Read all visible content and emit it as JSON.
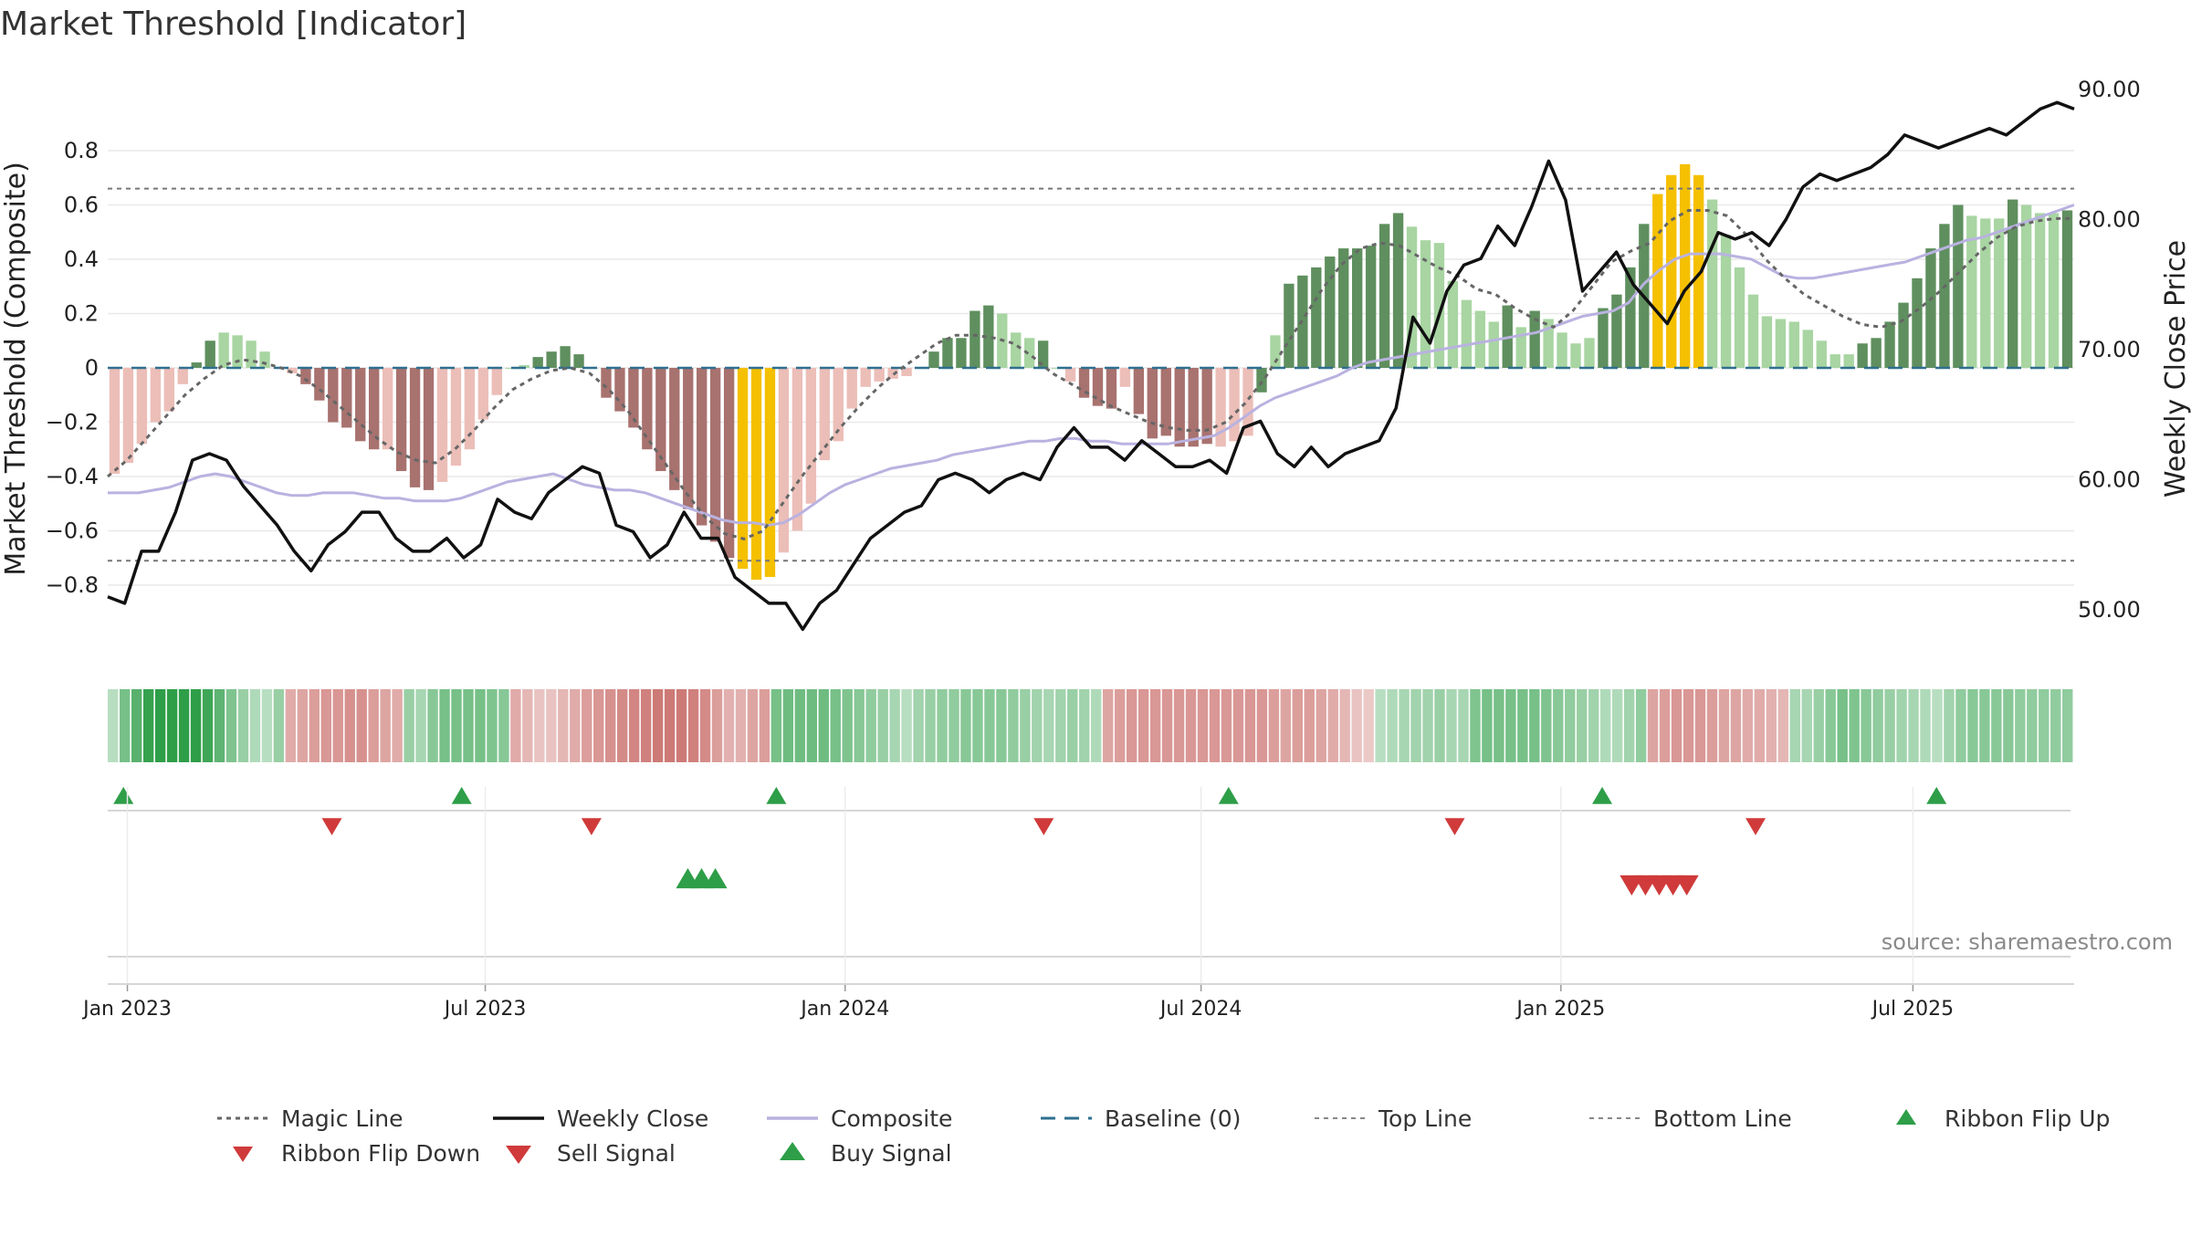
{
  "chart_data": {
    "type": "bar",
    "title": "Market Threshold [Indicator]",
    "ylabel": "Market Threshold (Composite)",
    "y2label": "Weekly Close Price",
    "ylim": [
      -0.85,
      0.85
    ],
    "y2lim": [
      45.0,
      92.0
    ],
    "yticks": [
      "0.8",
      "0.6",
      "0.4",
      "0.2",
      "0",
      "−0.2",
      "−0.4",
      "−0.6",
      "−0.8"
    ],
    "y2ticks": [
      "90.00",
      "80.00",
      "70.00",
      "60.00",
      "50.00"
    ],
    "xticks": [
      "Jan 2023",
      "Jul 2023",
      "Jan 2024",
      "Jul 2024",
      "Jan 2025",
      "Jul 2025"
    ],
    "top_line": 0.66,
    "bottom_line": -0.71,
    "source": "source: sharemaestro.com",
    "colors": {
      "strong_green": "#5f8f5f",
      "light_green": "#a8d5a2",
      "strong_red": "#a8726f",
      "light_red": "#ecbeb8",
      "extreme": "#f5c000",
      "magic_line": "#666666",
      "weekly_close": "#111111",
      "composite": "#b9b2e0",
      "baseline": "#2f6f8f",
      "buy": "#2e9e48",
      "sell": "#d03a3a"
    },
    "bar_values": [
      -0.39,
      -0.35,
      -0.28,
      -0.2,
      -0.16,
      -0.06,
      0.02,
      0.1,
      0.13,
      0.12,
      0.1,
      0.06,
      0.0,
      -0.02,
      -0.06,
      -0.12,
      -0.2,
      -0.22,
      -0.27,
      -0.3,
      -0.3,
      -0.38,
      -0.44,
      -0.45,
      -0.42,
      -0.36,
      -0.3,
      -0.19,
      -0.1,
      0.0,
      0.01,
      0.04,
      0.06,
      0.08,
      0.05,
      0.0,
      -0.11,
      -0.16,
      -0.22,
      -0.3,
      -0.38,
      -0.45,
      -0.52,
      -0.58,
      -0.64,
      -0.7,
      -0.74,
      -0.78,
      -0.77,
      -0.68,
      -0.6,
      -0.5,
      -0.34,
      -0.27,
      -0.15,
      -0.07,
      -0.05,
      -0.04,
      -0.03,
      0.0,
      0.06,
      0.11,
      0.11,
      0.21,
      0.23,
      0.2,
      0.13,
      0.11,
      0.1,
      0.0,
      -0.05,
      -0.11,
      -0.14,
      -0.15,
      -0.07,
      -0.17,
      -0.26,
      -0.25,
      -0.29,
      -0.29,
      -0.28,
      -0.29,
      -0.27,
      -0.25,
      -0.09,
      0.12,
      0.31,
      0.34,
      0.37,
      0.41,
      0.44,
      0.44,
      0.45,
      0.53,
      0.57,
      0.52,
      0.47,
      0.46,
      0.32,
      0.25,
      0.21,
      0.17,
      0.23,
      0.15,
      0.21,
      0.18,
      0.13,
      0.09,
      0.11,
      0.22,
      0.27,
      0.37,
      0.53,
      0.64,
      0.71,
      0.75,
      0.71,
      0.62,
      0.49,
      0.37,
      0.27,
      0.19,
      0.18,
      0.17,
      0.14,
      0.1,
      0.05,
      0.05,
      0.09,
      0.11,
      0.17,
      0.24,
      0.33,
      0.44,
      0.53,
      0.6,
      0.56,
      0.55,
      0.55,
      0.62,
      0.6,
      0.57,
      0.57,
      0.58
    ],
    "bar_colors": [
      "lr",
      "lr",
      "lr",
      "lr",
      "lr",
      "lr",
      "sg",
      "sg",
      "lg",
      "lg",
      "lg",
      "lg",
      "lr",
      "lr",
      "sr",
      "sr",
      "sr",
      "sr",
      "sr",
      "sr",
      "lr",
      "sr",
      "sr",
      "sr",
      "lr",
      "lr",
      "lr",
      "lr",
      "lr",
      "lg",
      "lg",
      "sg",
      "sg",
      "sg",
      "sg",
      "lg",
      "sr",
      "sr",
      "sr",
      "sr",
      "sr",
      "sr",
      "sr",
      "sr",
      "sr",
      "sr",
      "ex",
      "ex",
      "ex",
      "lr",
      "lr",
      "lr",
      "lr",
      "lr",
      "lr",
      "lr",
      "lr",
      "lr",
      "lr",
      "lg",
      "sg",
      "sg",
      "sg",
      "sg",
      "sg",
      "lg",
      "lg",
      "lg",
      "sg",
      "lg",
      "lr",
      "sr",
      "sr",
      "sr",
      "lr",
      "sr",
      "sr",
      "sr",
      "sr",
      "sr",
      "sr",
      "lr",
      "lr",
      "lr",
      "sg",
      "lg",
      "sg",
      "sg",
      "sg",
      "sg",
      "sg",
      "sg",
      "sg",
      "sg",
      "sg",
      "lg",
      "lg",
      "lg",
      "lg",
      "lg",
      "lg",
      "lg",
      "sg",
      "lg",
      "sg",
      "lg",
      "lg",
      "lg",
      "lg",
      "sg",
      "sg",
      "sg",
      "sg",
      "ex",
      "ex",
      "ex",
      "ex",
      "lg",
      "lg",
      "lg",
      "lg",
      "lg",
      "lg",
      "lg",
      "lg",
      "lg",
      "lg",
      "lg",
      "sg",
      "sg",
      "sg",
      "sg",
      "sg",
      "sg",
      "sg",
      "sg",
      "lg",
      "lg",
      "lg",
      "sg",
      "lg",
      "lg",
      "lg",
      "sg"
    ],
    "composite": [
      -0.46,
      -0.46,
      -0.46,
      -0.45,
      -0.44,
      -0.42,
      -0.4,
      -0.39,
      -0.4,
      -0.42,
      -0.44,
      -0.46,
      -0.47,
      -0.47,
      -0.46,
      -0.46,
      -0.46,
      -0.47,
      -0.48,
      -0.48,
      -0.49,
      -0.49,
      -0.49,
      -0.48,
      -0.46,
      -0.44,
      -0.42,
      -0.41,
      -0.4,
      -0.39,
      -0.41,
      -0.43,
      -0.44,
      -0.45,
      -0.45,
      -0.46,
      -0.48,
      -0.5,
      -0.52,
      -0.54,
      -0.56,
      -0.57,
      -0.57,
      -0.58,
      -0.57,
      -0.54,
      -0.5,
      -0.46,
      -0.43,
      -0.41,
      -0.39,
      -0.37,
      -0.36,
      -0.35,
      -0.34,
      -0.32,
      -0.31,
      -0.3,
      -0.29,
      -0.28,
      -0.27,
      -0.27,
      -0.26,
      -0.26,
      -0.27,
      -0.27,
      -0.28,
      -0.28,
      -0.28,
      -0.28,
      -0.27,
      -0.26,
      -0.25,
      -0.22,
      -0.18,
      -0.14,
      -0.11,
      -0.09,
      -0.07,
      -0.05,
      -0.03,
      0.0,
      0.02,
      0.03,
      0.04,
      0.05,
      0.06,
      0.07,
      0.08,
      0.09,
      0.1,
      0.11,
      0.12,
      0.13,
      0.15,
      0.17,
      0.19,
      0.2,
      0.21,
      0.24,
      0.31,
      0.36,
      0.4,
      0.42,
      0.42,
      0.42,
      0.41,
      0.4,
      0.37,
      0.34,
      0.33,
      0.33,
      0.34,
      0.35,
      0.36,
      0.37,
      0.38,
      0.39,
      0.41,
      0.43,
      0.45,
      0.47,
      0.48,
      0.5,
      0.52,
      0.54,
      0.56,
      0.58,
      0.6
    ],
    "magic": [
      -0.4,
      -0.34,
      -0.26,
      -0.18,
      -0.1,
      -0.04,
      0.01,
      0.03,
      0.02,
      0.0,
      -0.03,
      -0.08,
      -0.14,
      -0.2,
      -0.26,
      -0.31,
      -0.34,
      -0.35,
      -0.3,
      -0.23,
      -0.15,
      -0.08,
      -0.04,
      -0.01,
      0.0,
      -0.02,
      -0.08,
      -0.16,
      -0.26,
      -0.36,
      -0.46,
      -0.55,
      -0.61,
      -0.63,
      -0.6,
      -0.5,
      -0.4,
      -0.31,
      -0.22,
      -0.14,
      -0.07,
      -0.01,
      0.04,
      0.09,
      0.12,
      0.12,
      0.11,
      0.09,
      0.04,
      -0.02,
      -0.06,
      -0.1,
      -0.14,
      -0.17,
      -0.2,
      -0.22,
      -0.23,
      -0.23,
      -0.2,
      -0.13,
      -0.04,
      0.07,
      0.18,
      0.29,
      0.38,
      0.44,
      0.46,
      0.45,
      0.41,
      0.37,
      0.34,
      0.29,
      0.27,
      0.22,
      0.18,
      0.15,
      0.21,
      0.3,
      0.39,
      0.43,
      0.46,
      0.54,
      0.58,
      0.58,
      0.56,
      0.49,
      0.4,
      0.33,
      0.27,
      0.23,
      0.19,
      0.16,
      0.15,
      0.17,
      0.22,
      0.28,
      0.35,
      0.42,
      0.48,
      0.52,
      0.54,
      0.55,
      0.55
    ],
    "weekly_close": [
      51.0,
      50.5,
      54.5,
      54.5,
      57.5,
      61.5,
      62.0,
      61.5,
      59.5,
      58.0,
      56.5,
      54.5,
      53.0,
      55.0,
      56.0,
      57.5,
      57.5,
      55.5,
      54.5,
      54.5,
      55.5,
      54.0,
      55.0,
      58.5,
      57.5,
      57.0,
      59.0,
      60.0,
      61.0,
      60.5,
      56.5,
      56.0,
      54.0,
      55.0,
      57.5,
      55.5,
      55.5,
      52.5,
      51.5,
      50.5,
      50.5,
      48.5,
      50.5,
      51.5,
      53.5,
      55.5,
      56.5,
      57.5,
      58.0,
      60.0,
      60.5,
      60.0,
      59.0,
      60.0,
      60.5,
      60.0,
      62.5,
      64.0,
      62.5,
      62.5,
      61.5,
      63.0,
      62.0,
      61.0,
      61.0,
      61.5,
      60.5,
      64.0,
      64.5,
      62.0,
      61.0,
      62.5,
      61.0,
      62.0,
      62.5,
      63.0,
      65.5,
      72.5,
      70.5,
      74.5,
      76.5,
      77.0,
      79.5,
      78.0,
      81.0,
      84.5,
      81.5,
      74.5,
      76.0,
      77.5,
      75.0,
      73.5,
      72.0,
      74.5,
      76.0,
      79.0,
      78.5,
      79.0,
      78.0,
      80.0,
      82.5,
      83.5,
      83.0,
      83.5,
      84.0,
      85.0,
      86.5,
      86.0,
      85.5,
      86.0,
      86.5,
      87.0,
      86.5,
      87.5,
      88.5,
      89.0,
      88.5
    ],
    "ribbon": [
      0.15,
      0.55,
      0.75,
      0.95,
      1.0,
      1.0,
      1.0,
      1.0,
      0.9,
      0.7,
      0.5,
      0.35,
      0.2,
      0.15,
      0.35,
      0.4,
      0.45,
      0.5,
      0.55,
      0.55,
      0.6,
      0.6,
      0.5,
      0.45,
      0.4,
      0.35,
      0.25,
      0.45,
      0.55,
      0.55,
      0.55,
      0.55,
      0.5,
      0.45,
      0.4,
      0.3,
      0.2,
      0.2,
      0.3,
      0.4,
      0.5,
      0.55,
      0.6,
      0.65,
      0.7,
      0.75,
      0.8,
      0.8,
      0.8,
      0.75,
      0.65,
      0.5,
      0.35,
      0.35,
      0.45,
      0.5,
      0.55,
      0.6,
      0.6,
      0.6,
      0.6,
      0.55,
      0.5,
      0.45,
      0.4,
      0.35,
      0.25,
      0.15,
      0.3,
      0.35,
      0.4,
      0.4,
      0.45,
      0.45,
      0.45,
      0.45,
      0.4,
      0.35,
      0.3,
      0.25,
      0.3,
      0.35,
      0.3,
      0.2,
      0.45,
      0.5,
      0.55,
      0.55,
      0.55,
      0.55,
      0.55,
      0.55,
      0.55,
      0.55,
      0.55,
      0.55,
      0.55,
      0.55,
      0.5,
      0.45,
      0.5,
      0.5,
      0.45,
      0.4,
      0.3,
      0.2,
      0.15,
      0.15,
      0.2,
      0.25,
      0.3,
      0.3,
      0.35,
      0.25,
      0.25,
      0.5,
      0.55,
      0.55,
      0.55,
      0.55,
      0.55,
      0.5,
      0.45,
      0.4,
      0.35,
      0.3,
      0.2,
      0.2,
      0.3,
      0.4,
      0.45,
      0.5,
      0.55,
      0.55,
      0.55,
      0.5,
      0.45,
      0.45,
      0.4,
      0.4,
      0.35,
      0.3,
      0.25,
      0.25,
      0.35,
      0.45,
      0.55,
      0.5,
      0.45,
      0.4,
      0.35,
      0.3,
      0.25,
      0.2,
      0.15,
      0.3,
      0.4,
      0.45,
      0.45,
      0.45,
      0.45,
      0.4,
      0.4,
      0.4,
      0.4,
      0.4
    ],
    "ribbon_dir": [
      "g",
      "g",
      "g",
      "g",
      "g",
      "g",
      "g",
      "g",
      "g",
      "g",
      "g",
      "g",
      "g",
      "g",
      "g",
      "r",
      "r",
      "r",
      "r",
      "r",
      "r",
      "r",
      "r",
      "r",
      "r",
      "g",
      "g",
      "g",
      "g",
      "g",
      "g",
      "g",
      "g",
      "g",
      "r",
      "r",
      "r",
      "r",
      "r",
      "r",
      "r",
      "r",
      "r",
      "r",
      "r",
      "r",
      "r",
      "r",
      "r",
      "r",
      "r",
      "r",
      "r",
      "r",
      "r",
      "r",
      "g",
      "g",
      "g",
      "g",
      "g",
      "g",
      "g",
      "g",
      "g",
      "g",
      "g",
      "g",
      "g",
      "g",
      "g",
      "g",
      "g",
      "g",
      "g",
      "g",
      "g",
      "g",
      "g",
      "g",
      "g",
      "g",
      "g",
      "g",
      "r",
      "r",
      "r",
      "r",
      "r",
      "r",
      "r",
      "r",
      "r",
      "r",
      "r",
      "r",
      "r",
      "r",
      "r",
      "r",
      "r",
      "r",
      "r",
      "r",
      "r",
      "r",
      "r",
      "g",
      "g",
      "g",
      "g",
      "g",
      "g",
      "g",
      "g",
      "g",
      "g",
      "g",
      "g",
      "g",
      "g",
      "g",
      "g",
      "g",
      "g",
      "g",
      "g",
      "g",
      "g",
      "g",
      "r",
      "r",
      "r",
      "r",
      "r",
      "r",
      "r",
      "r",
      "r",
      "r",
      "r",
      "r",
      "g",
      "g",
      "g",
      "g",
      "g",
      "g",
      "g",
      "g",
      "g",
      "g",
      "g",
      "g",
      "g",
      "g",
      "g",
      "g",
      "g",
      "g",
      "g",
      "g",
      "g",
      "g",
      "g",
      "g",
      "g"
    ],
    "ribbon_flip_up": [
      0.008,
      0.18,
      0.34,
      0.57,
      0.76,
      0.93
    ],
    "ribbon_flip_down": [
      0.114,
      0.246,
      0.476,
      0.685,
      0.838
    ],
    "buy_signal": [
      0.295,
      0.302,
      0.309
    ],
    "sell_signal": [
      0.775,
      0.782,
      0.789,
      0.796,
      0.803
    ],
    "legend": [
      {
        "key": "magic",
        "label": "Magic Line"
      },
      {
        "key": "close",
        "label": "Weekly Close"
      },
      {
        "key": "composite",
        "label": "Composite"
      },
      {
        "key": "baseline",
        "label": "Baseline (0)"
      },
      {
        "key": "top",
        "label": "Top Line"
      },
      {
        "key": "bottom",
        "label": "Bottom Line"
      },
      {
        "key": "flipup",
        "label": "Ribbon Flip Up"
      },
      {
        "key": "flipdown",
        "label": "Ribbon Flip Down"
      },
      {
        "key": "sell",
        "label": "Sell Signal"
      },
      {
        "key": "buy",
        "label": "Buy Signal"
      }
    ]
  }
}
